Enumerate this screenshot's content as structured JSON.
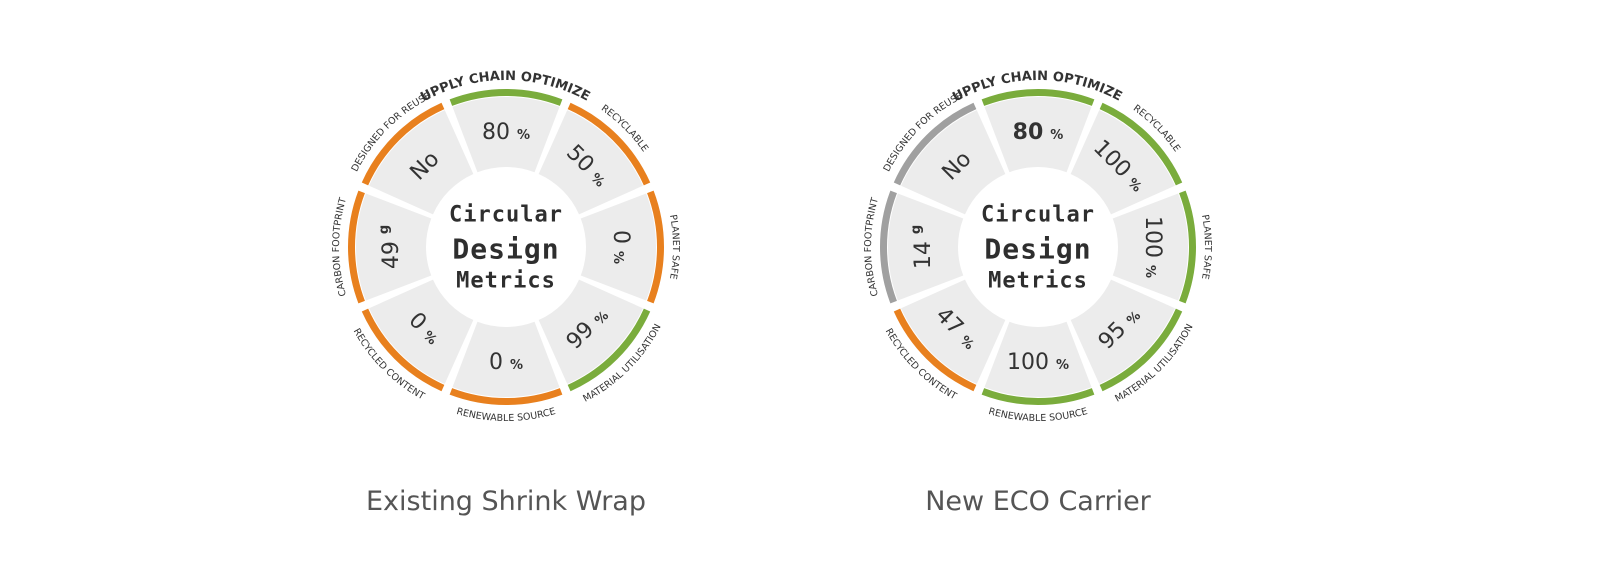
{
  "colors": {
    "good": "#7aac3c",
    "bad": "#e8801e",
    "neutral": "#a0a0a0",
    "segment": "#ececec",
    "text": "#333333",
    "center_text": "#2e2e2e"
  },
  "diagrams": [
    {
      "caption": "Existing Shrink Wrap",
      "center": [
        "Circular",
        "Design",
        "Metrics"
      ],
      "segments": [
        {
          "label": "SUPPLY CHAIN OPTIMIZED",
          "value": "80",
          "unit": "%",
          "status": "good",
          "bold": false
        },
        {
          "label": "RECYCLABLE",
          "value": "50",
          "unit": "%",
          "status": "bad",
          "bold": false
        },
        {
          "label": "PLANET SAFE",
          "value": "0",
          "unit": "%",
          "status": "bad",
          "bold": false
        },
        {
          "label": "MATERIAL UTILISATION",
          "value": "99",
          "unit": "%",
          "status": "good",
          "bold": false
        },
        {
          "label": "RENEWABLE SOURCE",
          "value": "0",
          "unit": "%",
          "status": "bad",
          "bold": false
        },
        {
          "label": "RECYCLED CONTENT",
          "value": "0",
          "unit": "%",
          "status": "bad",
          "bold": false
        },
        {
          "label": "CARBON FOOTPRINT",
          "value": "49",
          "unit": "g",
          "status": "bad",
          "bold": false
        },
        {
          "label": "DESIGNED FOR REUSE",
          "value": "No",
          "unit": "",
          "status": "bad",
          "bold": false
        }
      ]
    },
    {
      "caption": "New ECO Carrier",
      "center": [
        "Circular",
        "Design",
        "Metrics"
      ],
      "segments": [
        {
          "label": "SUPPLY CHAIN OPTIMIZED",
          "value": "80",
          "unit": "%",
          "status": "good",
          "bold": true
        },
        {
          "label": "RECYCLABLE",
          "value": "100",
          "unit": "%",
          "status": "good",
          "bold": false
        },
        {
          "label": "PLANET SAFE",
          "value": "100",
          "unit": "%",
          "status": "good",
          "bold": false
        },
        {
          "label": "MATERIAL UTILISATION",
          "value": "95",
          "unit": "%",
          "status": "good",
          "bold": false
        },
        {
          "label": "RENEWABLE SOURCE",
          "value": "100",
          "unit": "%",
          "status": "good",
          "bold": false
        },
        {
          "label": "RECYCLED CONTENT",
          "value": "47",
          "unit": "%",
          "status": "bad",
          "bold": false
        },
        {
          "label": "CARBON FOOTPRINT",
          "value": "14",
          "unit": "g",
          "status": "neutral",
          "bold": false
        },
        {
          "label": "DESIGNED FOR REUSE",
          "value": "No",
          "unit": "",
          "status": "neutral",
          "bold": false
        }
      ]
    }
  ]
}
